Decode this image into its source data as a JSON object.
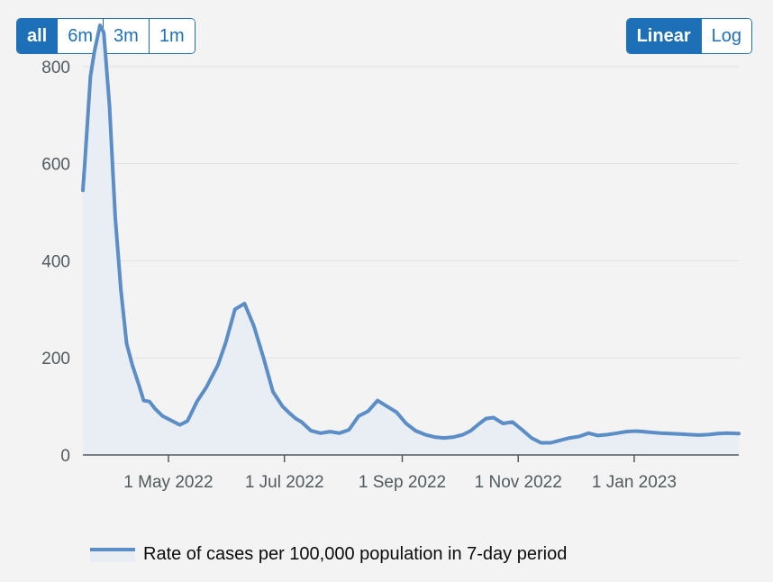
{
  "controls": {
    "range_buttons": [
      {
        "label": "all",
        "active": true
      },
      {
        "label": "6m",
        "active": false
      },
      {
        "label": "3m",
        "active": false
      },
      {
        "label": "1m",
        "active": false
      }
    ],
    "scale_buttons": [
      {
        "label": "Linear",
        "active": true
      },
      {
        "label": "Log",
        "active": false
      }
    ]
  },
  "colors": {
    "accent": "#1d70b8",
    "line": "#5b8dc7",
    "area": "#e9eef4",
    "grid": "#e2e2e2"
  },
  "chart_data": {
    "type": "area",
    "title": "",
    "xlabel": "",
    "ylabel": "",
    "scale": "linear",
    "grid": true,
    "legend_position": "bottom-left",
    "ylim": [
      0,
      900
    ],
    "yticks": [
      0,
      200,
      400,
      600,
      800
    ],
    "xlim": [
      "2022-03-17",
      "2023-02-25"
    ],
    "xticks": [
      {
        "date": "2022-05-01",
        "label": "1 May 2022"
      },
      {
        "date": "2022-07-01",
        "label": "1 Jul 2022"
      },
      {
        "date": "2022-09-01",
        "label": "1 Sep 2022"
      },
      {
        "date": "2022-11-01",
        "label": "1 Nov 2022"
      },
      {
        "date": "2023-01-01",
        "label": "1 Jan 2023"
      }
    ],
    "series": [
      {
        "name": "Rate of cases per 100,000 population in 7-day period",
        "x": [
          "2022-03-17",
          "2022-03-18",
          "2022-03-21",
          "2022-03-23",
          "2022-03-26",
          "2022-03-28",
          "2022-03-31",
          "2022-04-03",
          "2022-04-06",
          "2022-04-09",
          "2022-04-12",
          "2022-04-15",
          "2022-04-18",
          "2022-04-21",
          "2022-04-24",
          "2022-04-28",
          "2022-05-03",
          "2022-05-07",
          "2022-05-11",
          "2022-05-16",
          "2022-05-21",
          "2022-05-27",
          "2022-05-31",
          "2022-06-05",
          "2022-06-10",
          "2022-06-15",
          "2022-06-20",
          "2022-06-25",
          "2022-06-30",
          "2022-07-04",
          "2022-07-07",
          "2022-07-10",
          "2022-07-15",
          "2022-07-20",
          "2022-07-25",
          "2022-07-30",
          "2022-08-04",
          "2022-08-09",
          "2022-08-14",
          "2022-08-19",
          "2022-08-24",
          "2022-08-29",
          "2022-09-03",
          "2022-09-08",
          "2022-09-13",
          "2022-09-18",
          "2022-09-23",
          "2022-09-28",
          "2022-10-03",
          "2022-10-07",
          "2022-10-11",
          "2022-10-15",
          "2022-10-19",
          "2022-10-24",
          "2022-10-29",
          "2022-11-03",
          "2022-11-08",
          "2022-11-13",
          "2022-11-18",
          "2022-11-23",
          "2022-11-28",
          "2022-12-03",
          "2022-12-08",
          "2022-12-13",
          "2022-12-18",
          "2022-12-23",
          "2022-12-26",
          "2022-12-28",
          "2022-12-31",
          "2023-01-03",
          "2023-01-06",
          "2023-01-09",
          "2023-01-12",
          "2023-01-15",
          "2023-01-20",
          "2023-01-25",
          "2023-01-30",
          "2023-02-04",
          "2023-02-09",
          "2023-02-14",
          "2023-02-19",
          "2023-02-25"
        ],
        "values": [
          545,
          600,
          780,
          830,
          885,
          870,
          720,
          490,
          340,
          230,
          185,
          150,
          112,
          110,
          95,
          80,
          70,
          62,
          70,
          110,
          140,
          185,
          230,
          300,
          312,
          265,
          200,
          130,
          100,
          85,
          75,
          68,
          50,
          45,
          48,
          45,
          52,
          80,
          90,
          112,
          100,
          88,
          65,
          50,
          42,
          37,
          35,
          37,
          42,
          50,
          63,
          75,
          77,
          65,
          68,
          52,
          35,
          25,
          25,
          30,
          35,
          38,
          45,
          40,
          42,
          45,
          47,
          48,
          49,
          49,
          48,
          47,
          46,
          45,
          44,
          43,
          42,
          41,
          42,
          44,
          45,
          44
        ]
      }
    ]
  }
}
